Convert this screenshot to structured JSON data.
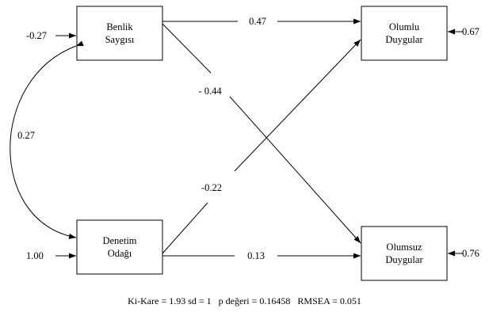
{
  "nodes": {
    "benlik": {
      "line1": "Benlik",
      "line2": "Saygısı"
    },
    "denetim": {
      "line1": "Denetim",
      "line2": "Odağı"
    },
    "olumlu": {
      "line1": "Olumlu",
      "line2": "Duygular"
    },
    "olumsuz": {
      "line1": "Olumsuz",
      "line2": "Duygular"
    }
  },
  "paths": {
    "benlik_olumlu": "0.47",
    "benlik_olumsuz": "- 0.44",
    "denetim_olumlu": "-0.22",
    "denetim_olumsuz": "0.13",
    "covariance": "0.27"
  },
  "errors": {
    "benlik": "-0.27",
    "denetim": "1.00",
    "olumlu": "0.67",
    "olumsuz": "0.76"
  },
  "footer": "Ki-Kare = 1.93 sd = 1   p değeri = 0.16458   RMSEA = 0.051"
}
